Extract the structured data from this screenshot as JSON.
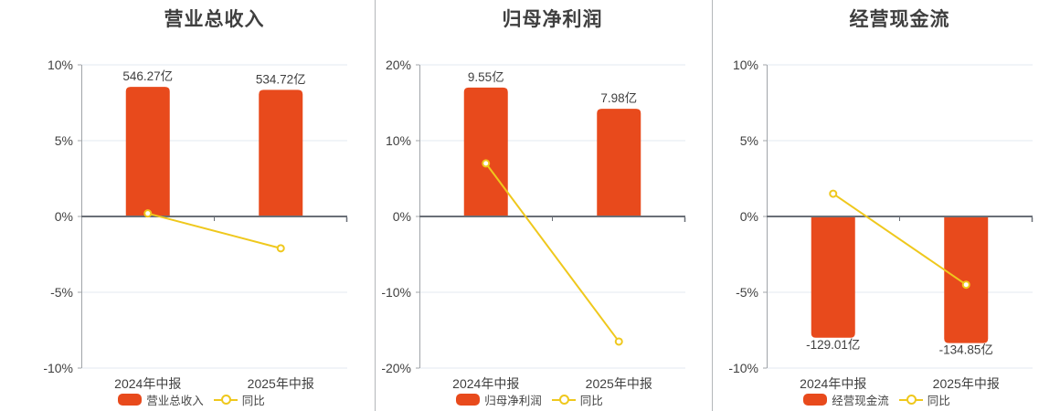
{
  "colors": {
    "bar": "#e84a1c",
    "line": "#efc81d",
    "zero_axis": "#6a6f77",
    "axis_line": "#a0a4a8",
    "grid": "#e3e8f1",
    "text": "#3f3f3f",
    "divider": "#b4b7ba",
    "background": "#ffffff"
  },
  "chart_data": [
    {
      "type": "bar",
      "title": "营业总收入",
      "categories": [
        "2024年中报",
        "2025年中报"
      ],
      "series": [
        {
          "name": "营业总收入",
          "type": "bar",
          "value_labels": [
            "546.27亿",
            "534.72亿"
          ],
          "display_pct": [
            8.55,
            8.35
          ]
        },
        {
          "name": "同比",
          "type": "line",
          "values_pct": [
            0.2,
            -2.1
          ]
        }
      ],
      "y_ticks": [
        "10%",
        "5%",
        "0%",
        "-5%",
        "-10%"
      ],
      "ylim": [
        -10,
        10
      ],
      "grid": true,
      "legend_position": "bottom"
    },
    {
      "type": "bar",
      "title": "归母净利润",
      "categories": [
        "2024年中报",
        "2025年中报"
      ],
      "series": [
        {
          "name": "归母净利润",
          "type": "bar",
          "value_labels": [
            "9.55亿",
            "7.98亿"
          ],
          "display_pct": [
            17.0,
            14.2
          ]
        },
        {
          "name": "同比",
          "type": "line",
          "values_pct": [
            7.0,
            -16.5
          ]
        }
      ],
      "y_ticks": [
        "20%",
        "10%",
        "0%",
        "-10%",
        "-20%"
      ],
      "ylim": [
        -20,
        20
      ],
      "grid": true,
      "legend_position": "bottom"
    },
    {
      "type": "bar",
      "title": "经营现金流",
      "categories": [
        "2024年中报",
        "2025年中报"
      ],
      "series": [
        {
          "name": "经营现金流",
          "type": "bar",
          "value_labels": [
            "-129.01亿",
            "-134.85亿"
          ],
          "display_pct": [
            -8.0,
            -8.35
          ]
        },
        {
          "name": "同比",
          "type": "line",
          "values_pct": [
            1.5,
            -4.5
          ]
        }
      ],
      "y_ticks": [
        "10%",
        "5%",
        "0%",
        "-5%",
        "-10%"
      ],
      "ylim": [
        -10,
        10
      ],
      "grid": true,
      "legend_position": "bottom"
    }
  ]
}
